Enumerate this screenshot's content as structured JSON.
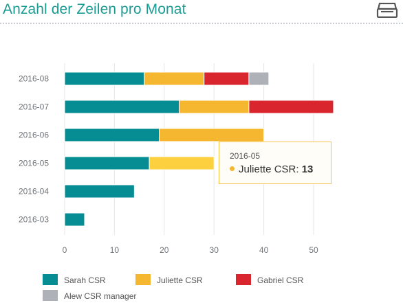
{
  "header": {
    "title": "Anzahl der Zeilen pro Monat",
    "icon": "tray-icon"
  },
  "colors": {
    "title": "#1a9b93",
    "sarah": "#068d93",
    "juliette": "#f5b730",
    "juliette_hover": "#fcd03e",
    "gabriel": "#d9262e",
    "alew": "#aeb2b8"
  },
  "chart_data": {
    "type": "bar",
    "orientation": "horizontal",
    "stacked": true,
    "categories": [
      "2016-08",
      "2016-07",
      "2016-06",
      "2016-05",
      "2016-04",
      "2016-03"
    ],
    "series": [
      {
        "name": "Sarah CSR",
        "color": "#068d93",
        "values": [
          16,
          23,
          19,
          17,
          14,
          4
        ]
      },
      {
        "name": "Juliette CSR",
        "color": "#f5b730",
        "values": [
          12,
          14,
          21,
          13,
          0,
          0
        ]
      },
      {
        "name": "Gabriel CSR",
        "color": "#d9262e",
        "values": [
          9,
          17,
          0,
          0,
          0,
          0
        ]
      },
      {
        "name": "Alew CSR manager",
        "color": "#aeb2b8",
        "values": [
          4,
          0,
          0,
          0,
          0,
          0
        ]
      }
    ],
    "xlim": [
      0,
      55
    ],
    "xticks": [
      "0",
      "10",
      "20",
      "30",
      "40",
      "50"
    ],
    "grid": true,
    "legend_position": "bottom"
  },
  "tooltip": {
    "category": "2016-05",
    "series": "Juliette CSR",
    "separator": ": ",
    "value": "13"
  }
}
